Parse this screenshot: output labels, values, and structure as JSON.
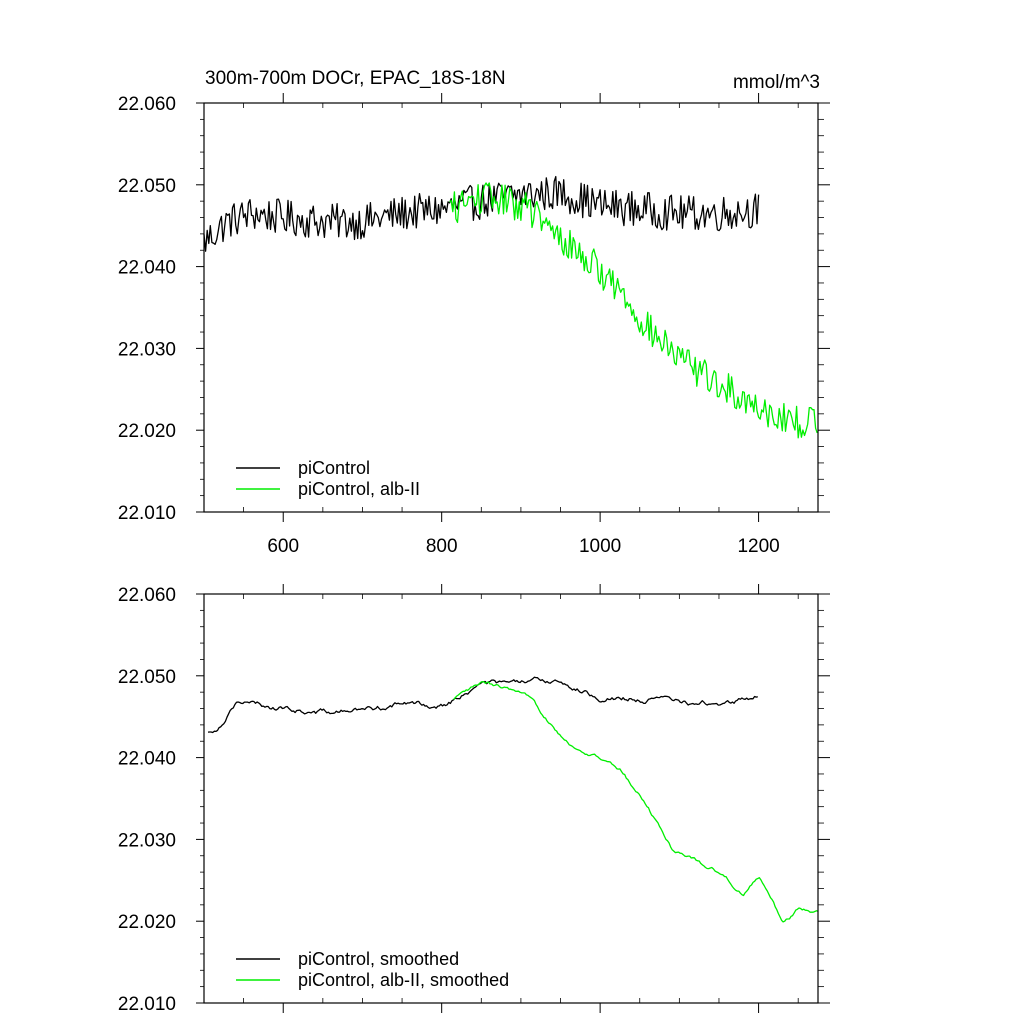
{
  "chart_data": [
    {
      "type": "line",
      "title": "300m-700m DOCr, EPAC_18S-18N",
      "units": "mmol/m^3",
      "xlim": [
        500,
        1275
      ],
      "ylim": [
        22.01,
        22.06
      ],
      "xticks": [
        "600",
        "800",
        "1000",
        "1200"
      ],
      "yticks": [
        "22.060",
        "22.050",
        "22.040",
        "22.030",
        "22.020",
        "22.010"
      ],
      "show_x_tick_labels": true,
      "legend_position": "bottom-left",
      "grid": false,
      "series": [
        {
          "name": "piControl",
          "color": "#000000",
          "x_start": 500,
          "x_end": 1200,
          "step": 2,
          "noise": 0.0022,
          "anchors": [
            [
              500,
              22.043
            ],
            [
              530,
              22.0455
            ],
            [
              560,
              22.0465
            ],
            [
              600,
              22.046
            ],
            [
              650,
              22.0455
            ],
            [
              700,
              22.0455
            ],
            [
              750,
              22.0465
            ],
            [
              800,
              22.047
            ],
            [
              850,
              22.048
            ],
            [
              900,
              22.0488
            ],
            [
              950,
              22.049
            ],
            [
              1000,
              22.0475
            ],
            [
              1050,
              22.047
            ],
            [
              1100,
              22.0465
            ],
            [
              1150,
              22.0465
            ],
            [
              1200,
              22.047
            ]
          ]
        },
        {
          "name": "piControl, alb-II",
          "color": "#00ee00",
          "x_start": 810,
          "x_end": 1275,
          "step": 2,
          "noise": 0.002,
          "anchors": [
            [
              810,
              22.047
            ],
            [
              850,
              22.0485
            ],
            [
              880,
              22.048
            ],
            [
              910,
              22.0472
            ],
            [
              940,
              22.044
            ],
            [
              970,
              22.042
            ],
            [
              1000,
              22.0395
            ],
            [
              1030,
              22.0365
            ],
            [
              1060,
              22.0325
            ],
            [
              1090,
              22.0295
            ],
            [
              1120,
              22.0275
            ],
            [
              1150,
              22.0255
            ],
            [
              1180,
              22.024
            ],
            [
              1210,
              22.0225
            ],
            [
              1240,
              22.021
            ],
            [
              1275,
              22.021
            ]
          ]
        }
      ]
    },
    {
      "type": "line",
      "title": "",
      "units": "",
      "xlim": [
        500,
        1275
      ],
      "ylim": [
        22.01,
        22.06
      ],
      "xticks": [
        "600",
        "800",
        "1000",
        "1200"
      ],
      "yticks": [
        "22.060",
        "22.050",
        "22.040",
        "22.030",
        "22.020",
        "22.010"
      ],
      "show_x_tick_labels": false,
      "legend_position": "bottom-left",
      "grid": false,
      "series": [
        {
          "name": "piControl, smoothed",
          "color": "#000000",
          "x_start": 505,
          "x_end": 1200,
          "step": 2,
          "noise": 0.0004,
          "anchors": [
            [
              505,
              22.043
            ],
            [
              520,
              22.044
            ],
            [
              540,
              22.047
            ],
            [
              560,
              22.0465
            ],
            [
              600,
              22.046
            ],
            [
              650,
              22.0455
            ],
            [
              700,
              22.0458
            ],
            [
              750,
              22.0465
            ],
            [
              800,
              22.0465
            ],
            [
              830,
              22.0478
            ],
            [
              850,
              22.049
            ],
            [
              900,
              22.049
            ],
            [
              950,
              22.0495
            ],
            [
              980,
              22.048
            ],
            [
              1000,
              22.0475
            ],
            [
              1050,
              22.0472
            ],
            [
              1100,
              22.0468
            ],
            [
              1150,
              22.0465
            ],
            [
              1200,
              22.0475
            ]
          ]
        },
        {
          "name": "piControl, alb-II, smoothed",
          "color": "#00ee00",
          "x_start": 815,
          "x_end": 1275,
          "step": 2,
          "noise": 0.0003,
          "anchors": [
            [
              815,
              22.047
            ],
            [
              850,
              22.049
            ],
            [
              880,
              22.0485
            ],
            [
              910,
              22.047
            ],
            [
              940,
              22.044
            ],
            [
              970,
              22.041
            ],
            [
              1000,
              22.04
            ],
            [
              1030,
              22.038
            ],
            [
              1060,
              22.034
            ],
            [
              1090,
              22.029
            ],
            [
              1120,
              22.0275
            ],
            [
              1150,
              22.026
            ],
            [
              1180,
              22.0235
            ],
            [
              1200,
              22.0255
            ],
            [
              1230,
              22.02
            ],
            [
              1250,
              22.0215
            ],
            [
              1275,
              22.021
            ]
          ]
        }
      ]
    }
  ]
}
